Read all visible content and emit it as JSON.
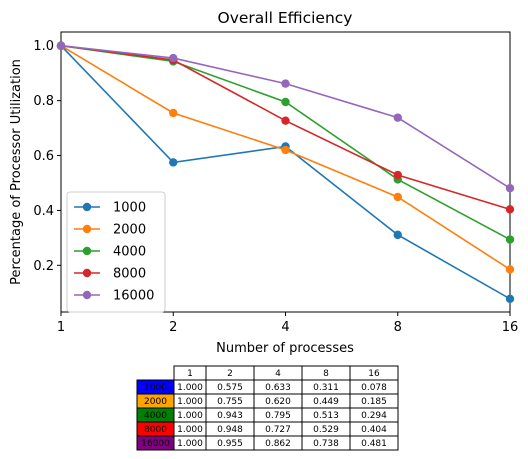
{
  "chart_data": {
    "type": "line",
    "title": "Overall Efficiency",
    "xlabel": "Number of processes",
    "ylabel": "Percentage of Processor Utilization",
    "x_scale": "log2",
    "x": [
      1,
      2,
      4,
      8,
      16
    ],
    "x_tick_labels": [
      "1",
      "2",
      "4",
      "8",
      "16"
    ],
    "ylim": [
      0.03,
      1.05
    ],
    "y_ticks": [
      0.2,
      0.4,
      0.6,
      0.8,
      1.0
    ],
    "y_tick_labels": [
      "0.2",
      "0.4",
      "0.6",
      "0.8",
      "1.0"
    ],
    "grid": false,
    "legend_position": "lower-left",
    "series": [
      {
        "name": "1000",
        "color": "#1f77b4",
        "values": [
          1.0,
          0.575,
          0.633,
          0.311,
          0.078
        ]
      },
      {
        "name": "2000",
        "color": "#ff7f0e",
        "values": [
          1.0,
          0.755,
          0.62,
          0.449,
          0.185
        ]
      },
      {
        "name": "4000",
        "color": "#2ca02c",
        "values": [
          1.0,
          0.943,
          0.795,
          0.513,
          0.294
        ]
      },
      {
        "name": "8000",
        "color": "#d62728",
        "values": [
          1.0,
          0.948,
          0.727,
          0.529,
          0.404
        ]
      },
      {
        "name": "16000",
        "color": "#9467bd",
        "values": [
          1.0,
          0.955,
          0.862,
          0.738,
          0.481
        ]
      }
    ],
    "table": {
      "col_labels": [
        "1",
        "2",
        "4",
        "8",
        "16"
      ],
      "rows": [
        {
          "label": "1000",
          "color": "#0000ff",
          "cells": [
            "1.000",
            "0.575",
            "0.633",
            "0.311",
            "0.078"
          ]
        },
        {
          "label": "2000",
          "color": "#ffa500",
          "cells": [
            "1.000",
            "0.755",
            "0.620",
            "0.449",
            "0.185"
          ]
        },
        {
          "label": "4000",
          "color": "#008000",
          "cells": [
            "1.000",
            "0.943",
            "0.795",
            "0.513",
            "0.294"
          ]
        },
        {
          "label": "8000",
          "color": "#ff0000",
          "cells": [
            "1.000",
            "0.948",
            "0.727",
            "0.529",
            "0.404"
          ]
        },
        {
          "label": "16000",
          "color": "#800080",
          "cells": [
            "1.000",
            "0.955",
            "0.862",
            "0.738",
            "0.481"
          ]
        }
      ]
    }
  }
}
